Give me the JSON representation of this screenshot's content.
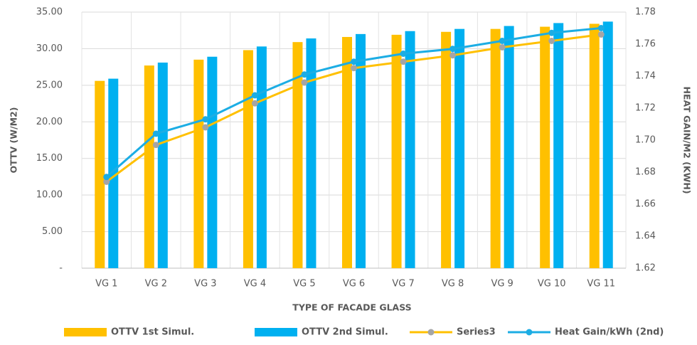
{
  "chart_data": {
    "type": "bar_line",
    "x_label": "TYPE OF FACADE GLASS",
    "y_label": "OTTV (W/M2)",
    "y2_label": "HEAT GAIN/M2 (KWH)",
    "categories": [
      "VG 1",
      "VG 2",
      "VG 3",
      "VG 4",
      "VG 5",
      "VG 6",
      "VG 7",
      "VG 8",
      "VG 9",
      "VG 10",
      "VG 11"
    ],
    "series": [
      {
        "name": "OTTV 1st Simul.",
        "type": "bar",
        "color": "#FFC000",
        "values": [
          25.6,
          27.7,
          28.5,
          29.8,
          30.9,
          31.6,
          31.9,
          32.3,
          32.7,
          33.0,
          33.4
        ]
      },
      {
        "name": "OTTV 2nd Simul.",
        "type": "bar",
        "color": "#00B0F0",
        "values": [
          25.9,
          28.1,
          28.9,
          30.3,
          31.4,
          32.0,
          32.4,
          32.7,
          33.1,
          33.5,
          33.7
        ]
      },
      {
        "name": "Series3",
        "type": "line",
        "axis": "y2",
        "color": "#FFC000",
        "marker_color": "#A5A5A5",
        "values": [
          1.674,
          1.697,
          1.708,
          1.723,
          1.736,
          1.745,
          1.749,
          1.753,
          1.758,
          1.762,
          1.766
        ]
      },
      {
        "name": "Heat Gain/kWh (2nd)",
        "type": "line",
        "axis": "y2",
        "color": "#1CADE4",
        "marker_color": "#1CADE4",
        "values": [
          1.677,
          1.704,
          1.713,
          1.728,
          1.741,
          1.749,
          1.754,
          1.757,
          1.762,
          1.767,
          1.77
        ]
      }
    ],
    "ylim": [
      0,
      35
    ],
    "yticks": [
      {
        "value": 0,
        "label": "-"
      },
      {
        "value": 5,
        "label": "5.00"
      },
      {
        "value": 10,
        "label": "10.00"
      },
      {
        "value": 15,
        "label": "15.00"
      },
      {
        "value": 20,
        "label": "20.00"
      },
      {
        "value": 25,
        "label": "25.00"
      },
      {
        "value": 30,
        "label": "30.00"
      },
      {
        "value": 35,
        "label": "35.00"
      }
    ],
    "y2lim": [
      1.62,
      1.78
    ],
    "y2ticks": [
      1.62,
      1.64,
      1.66,
      1.68,
      {
        "value": 1.7,
        "label": "1.70"
      },
      1.72,
      1.74,
      1.76,
      1.78
    ],
    "grid": true,
    "legend": "bottom"
  }
}
